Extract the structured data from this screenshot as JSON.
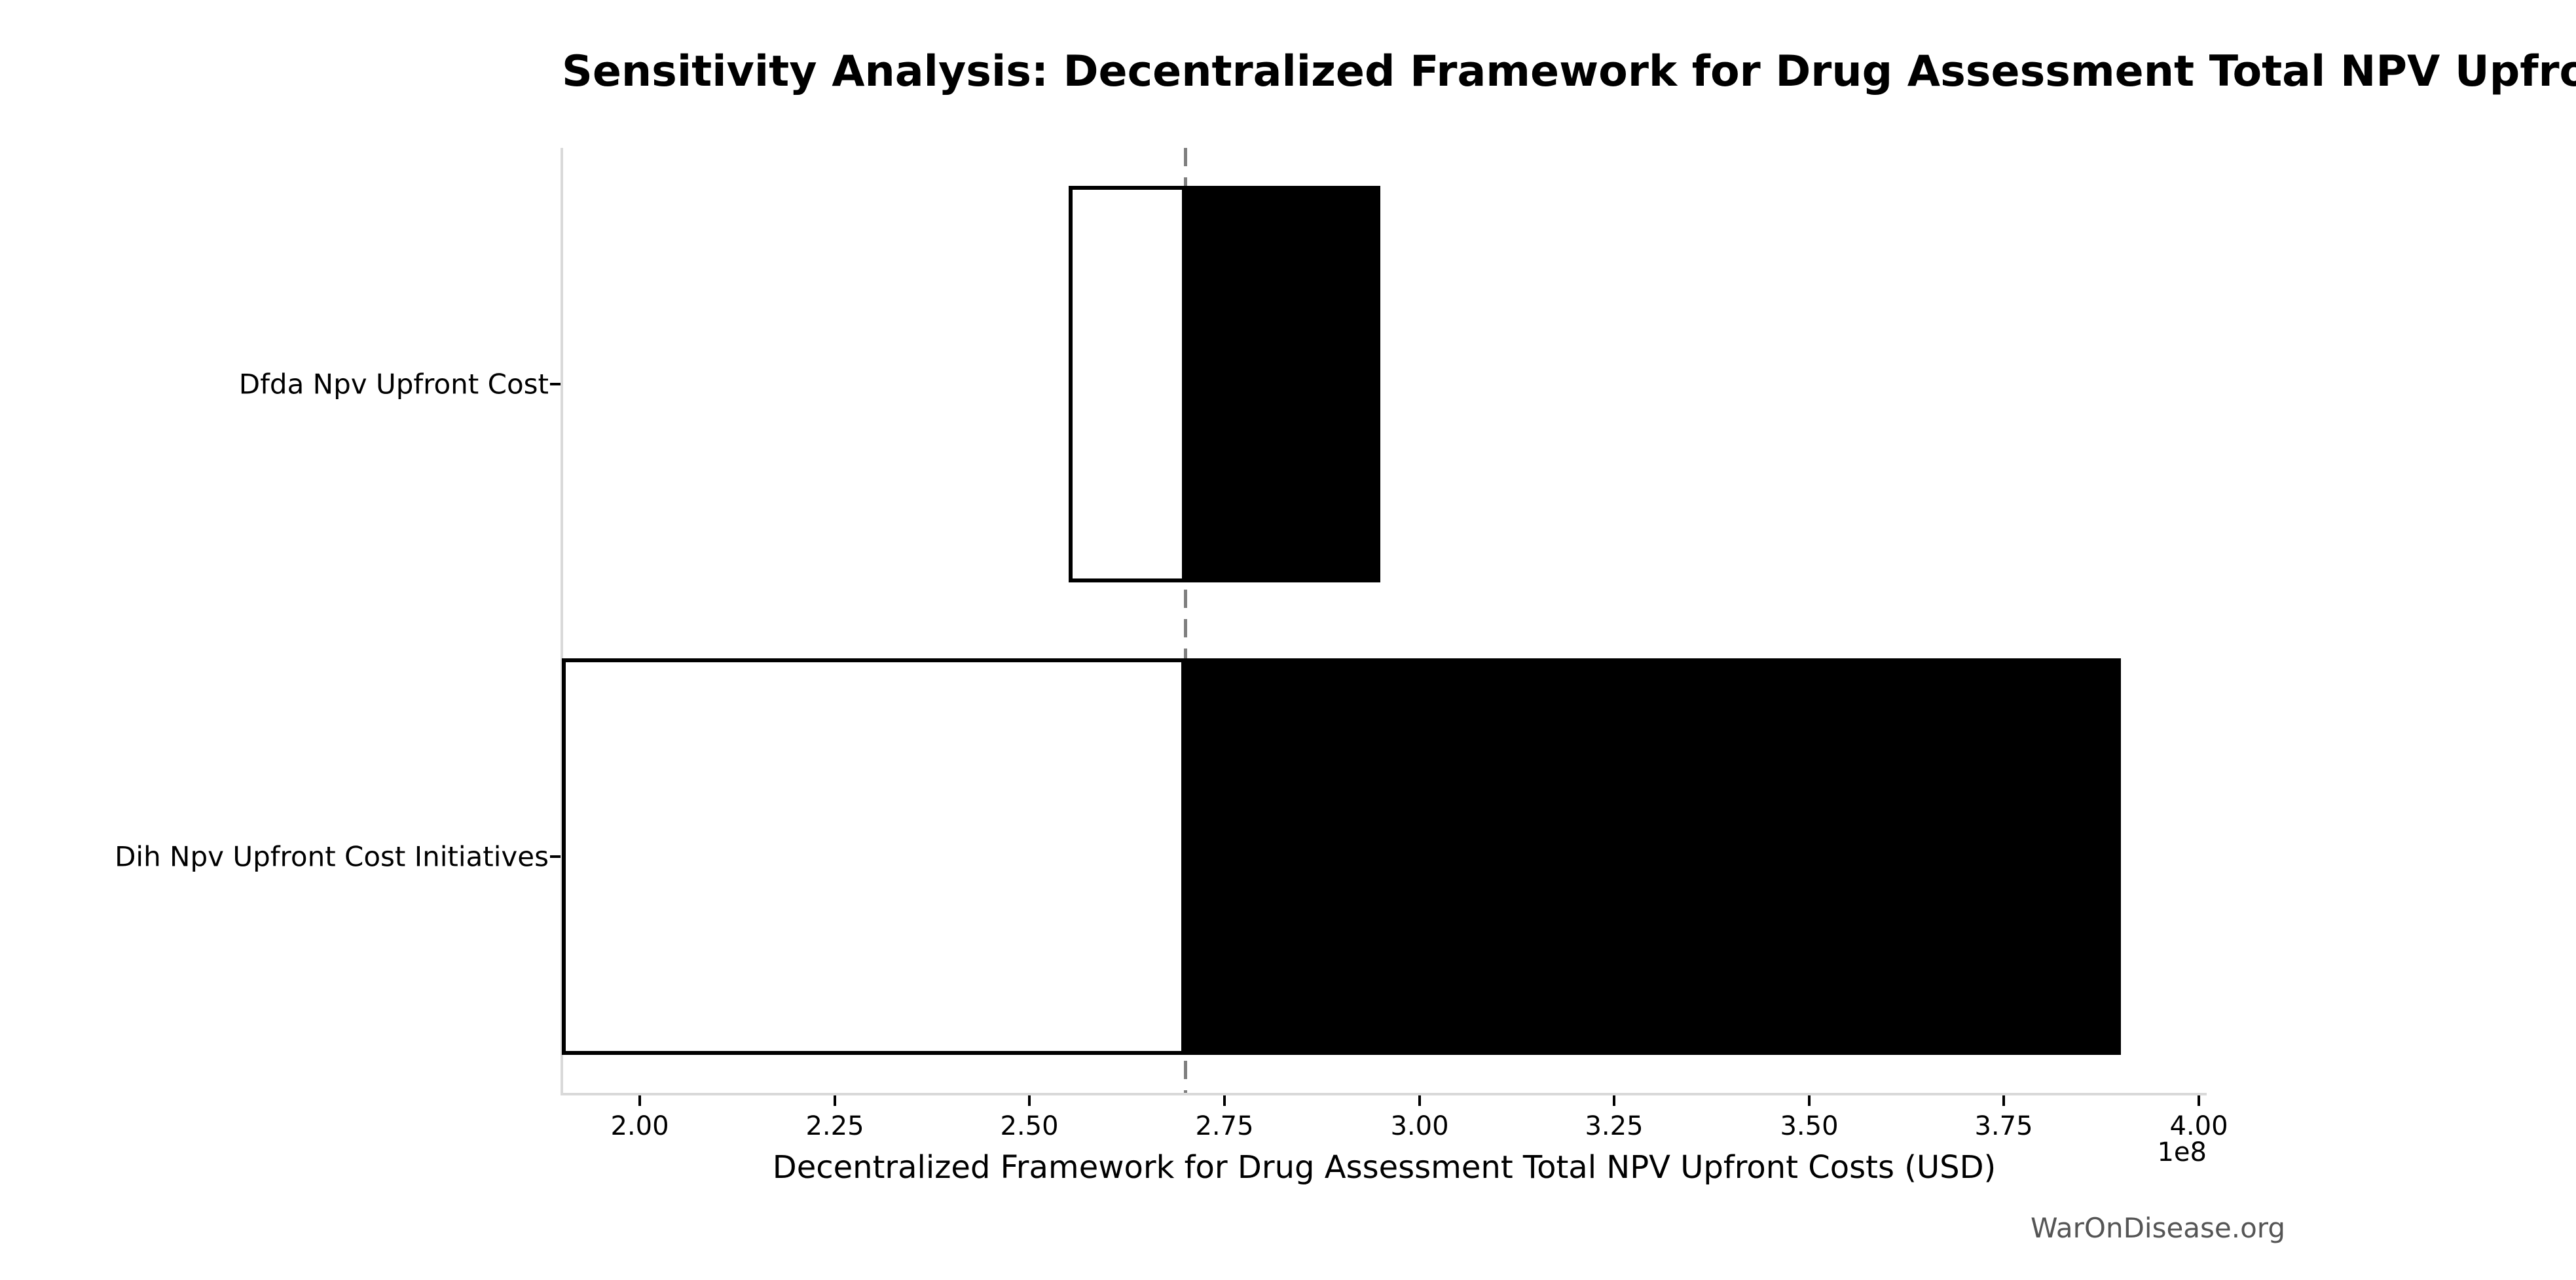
{
  "chart_data": {
    "type": "bar",
    "variant": "tornado-sensitivity",
    "orientation": "horizontal",
    "title": "Sensitivity Analysis: Decentralized Framework for Drug Assessment Total NPV Upfront Costs",
    "xlabel": "Decentralized Framework for Drug Assessment Total NPV Upfront Costs (USD)",
    "axis_offset_label": "1e8",
    "watermark": "WarOnDisease.org",
    "baseline_value": 270000000,
    "xlim": [
      190000000,
      401000000
    ],
    "x_ticks": [
      {
        "value": 200000000,
        "label": "2.00"
      },
      {
        "value": 225000000,
        "label": "2.25"
      },
      {
        "value": 250000000,
        "label": "2.50"
      },
      {
        "value": 275000000,
        "label": "2.75"
      },
      {
        "value": 300000000,
        "label": "3.00"
      },
      {
        "value": 325000000,
        "label": "3.25"
      },
      {
        "value": 350000000,
        "label": "3.50"
      },
      {
        "value": 375000000,
        "label": "3.75"
      },
      {
        "value": 400000000,
        "label": "4.00"
      }
    ],
    "categories": [
      "Dfda Npv Upfront Cost",
      "Dih Npv Upfront Cost Initiatives"
    ],
    "series": [
      {
        "name": "low",
        "fill": "#ffffff",
        "values": [
          255000000,
          190000000
        ]
      },
      {
        "name": "high",
        "fill": "#000000",
        "values": [
          295000000,
          390000000
        ]
      }
    ],
    "grid": false,
    "legend": false,
    "colors": {
      "bar_edge": "#000000",
      "baseline_dash": "#7f7f7f",
      "spine": "#d9d9d9",
      "text": "#000000",
      "watermark_text": "#555555"
    }
  }
}
